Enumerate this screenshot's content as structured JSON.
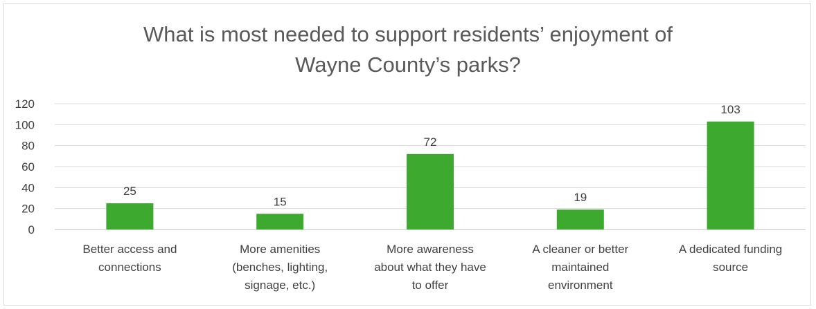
{
  "chart_data": {
    "type": "bar",
    "title_lines": [
      "What is most needed to support residents’ enjoyment of",
      "Wayne County’s parks?"
    ],
    "categories": [
      [
        "Better access and",
        "connections"
      ],
      [
        "More amenities",
        "(benches, lighting,",
        "signage, etc.)"
      ],
      [
        "More awareness",
        "about what they have",
        "to offer"
      ],
      [
        "A cleaner or better",
        "maintained",
        "environment"
      ],
      [
        "A dedicated funding",
        "source"
      ]
    ],
    "values": [
      25,
      15,
      72,
      19,
      103
    ],
    "data_labels": [
      "25",
      "15",
      "72",
      "19",
      "103"
    ],
    "ylim": [
      0,
      120
    ],
    "y_ticks": [
      "0",
      "20",
      "40",
      "60",
      "80",
      "100",
      "120"
    ],
    "bar_color": "#3daa2f",
    "grid": true,
    "legend": "none"
  }
}
